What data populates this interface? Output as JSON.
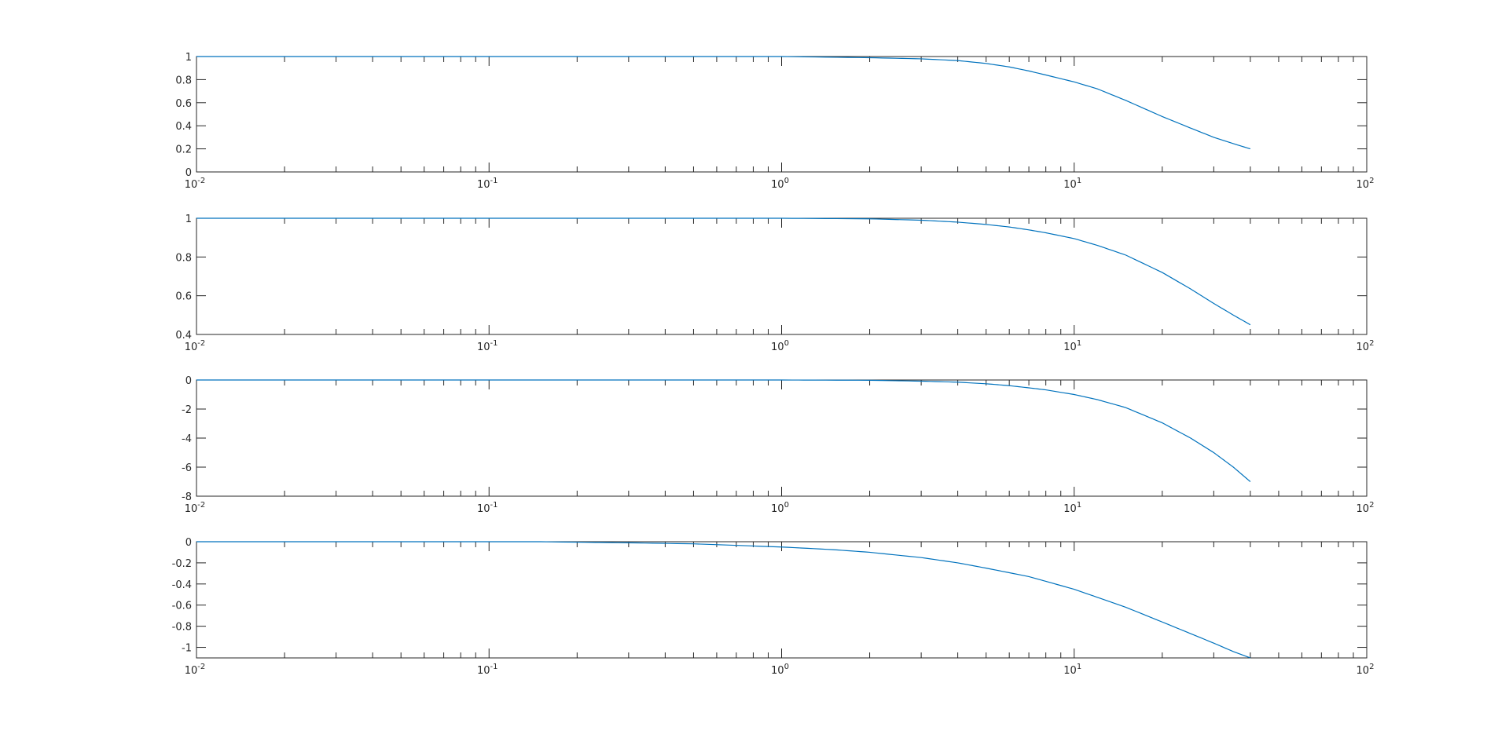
{
  "figure": {
    "background_color": "#ffffff",
    "axes_color": "#262626",
    "line_color": "#0072bd"
  },
  "chart_data": [
    {
      "type": "line",
      "title": "",
      "xlabel": "",
      "ylabel": "",
      "xscale": "log",
      "xlim": [
        0.01,
        100
      ],
      "ylim": [
        0,
        1
      ],
      "grid": false,
      "legend": "none",
      "x_ticks": [
        0.01,
        0.1,
        1,
        10,
        100
      ],
      "x_tick_labels": [
        {
          "base": "10",
          "exp": "-2"
        },
        {
          "base": "10",
          "exp": "-1"
        },
        {
          "base": "10",
          "exp": "0"
        },
        {
          "base": "10",
          "exp": "1"
        },
        {
          "base": "10",
          "exp": "2"
        }
      ],
      "y_ticks": [
        0,
        0.2,
        0.4,
        0.6,
        0.8,
        1
      ],
      "y_tick_labels": [
        "0",
        "0.2",
        "0.4",
        "0.6",
        "0.8",
        "1"
      ],
      "series": [
        {
          "x": [
            0.01,
            0.1,
            1,
            2,
            3,
            4,
            5,
            6,
            7,
            8,
            10,
            12,
            15,
            20,
            25,
            30,
            35,
            40
          ],
          "y": [
            1,
            1,
            1,
            0.99,
            0.98,
            0.965,
            0.94,
            0.91,
            0.875,
            0.84,
            0.78,
            0.72,
            0.62,
            0.48,
            0.38,
            0.3,
            0.245,
            0.2
          ]
        }
      ]
    },
    {
      "type": "line",
      "title": "",
      "xlabel": "",
      "ylabel": "",
      "xscale": "log",
      "xlim": [
        0.01,
        100
      ],
      "ylim": [
        0.4,
        1
      ],
      "grid": false,
      "legend": "none",
      "x_ticks": [
        0.01,
        0.1,
        1,
        10,
        100
      ],
      "x_tick_labels": [
        {
          "base": "10",
          "exp": "-2"
        },
        {
          "base": "10",
          "exp": "-1"
        },
        {
          "base": "10",
          "exp": "0"
        },
        {
          "base": "10",
          "exp": "1"
        },
        {
          "base": "10",
          "exp": "2"
        }
      ],
      "y_ticks": [
        0.4,
        0.6,
        0.8,
        1
      ],
      "y_tick_labels": [
        "0.4",
        "0.6",
        "0.8",
        "1"
      ],
      "series": [
        {
          "x": [
            0.01,
            0.1,
            1,
            2,
            3,
            4,
            5,
            6,
            7,
            8,
            10,
            12,
            15,
            20,
            25,
            30,
            35,
            40
          ],
          "y": [
            1,
            1,
            1,
            0.997,
            0.99,
            0.98,
            0.968,
            0.955,
            0.94,
            0.925,
            0.895,
            0.86,
            0.81,
            0.72,
            0.635,
            0.56,
            0.5,
            0.45
          ]
        }
      ]
    },
    {
      "type": "line",
      "title": "",
      "xlabel": "",
      "ylabel": "",
      "xscale": "log",
      "xlim": [
        0.01,
        100
      ],
      "ylim": [
        -8,
        0
      ],
      "grid": false,
      "legend": "none",
      "x_ticks": [
        0.01,
        0.1,
        1,
        10,
        100
      ],
      "x_tick_labels": [
        {
          "base": "10",
          "exp": "-2"
        },
        {
          "base": "10",
          "exp": "-1"
        },
        {
          "base": "10",
          "exp": "0"
        },
        {
          "base": "10",
          "exp": "1"
        },
        {
          "base": "10",
          "exp": "2"
        }
      ],
      "y_ticks": [
        -8,
        -6,
        -4,
        -2,
        0
      ],
      "y_tick_labels": [
        "-8",
        "-6",
        "-4",
        "-2",
        "0"
      ],
      "series": [
        {
          "x": [
            0.01,
            0.1,
            1,
            2,
            3,
            4,
            5,
            6,
            7,
            8,
            10,
            12,
            15,
            20,
            25,
            30,
            35,
            40
          ],
          "y": [
            0,
            0,
            0,
            -0.02,
            -0.08,
            -0.15,
            -0.26,
            -0.39,
            -0.54,
            -0.68,
            -1.0,
            -1.35,
            -1.9,
            -2.95,
            -4.0,
            -5.0,
            -6.0,
            -7.0
          ]
        }
      ]
    },
    {
      "type": "line",
      "title": "",
      "xlabel": "",
      "ylabel": "",
      "xscale": "log",
      "xlim": [
        0.01,
        100
      ],
      "ylim": [
        -1.1,
        0
      ],
      "grid": false,
      "legend": "none",
      "x_ticks": [
        0.01,
        0.1,
        1,
        10,
        100
      ],
      "x_tick_labels": [
        {
          "base": "10",
          "exp": "-2"
        },
        {
          "base": "10",
          "exp": "-1"
        },
        {
          "base": "10",
          "exp": "0"
        },
        {
          "base": "10",
          "exp": "1"
        },
        {
          "base": "10",
          "exp": "2"
        }
      ],
      "y_ticks": [
        -1,
        -0.8,
        -0.6,
        -0.4,
        -0.2,
        0
      ],
      "y_tick_labels": [
        "-1",
        "-0.8",
        "-0.6",
        "-0.4",
        "-0.2",
        "0"
      ],
      "series": [
        {
          "x": [
            0.01,
            0.15,
            0.3,
            0.5,
            1,
            1.5,
            2,
            3,
            4,
            5,
            7,
            10,
            15,
            20,
            25,
            30,
            35,
            40
          ],
          "y": [
            0,
            0,
            -0.01,
            -0.02,
            -0.05,
            -0.075,
            -0.1,
            -0.15,
            -0.2,
            -0.25,
            -0.33,
            -0.45,
            -0.62,
            -0.76,
            -0.87,
            -0.96,
            -1.04,
            -1.1
          ]
        }
      ]
    }
  ]
}
